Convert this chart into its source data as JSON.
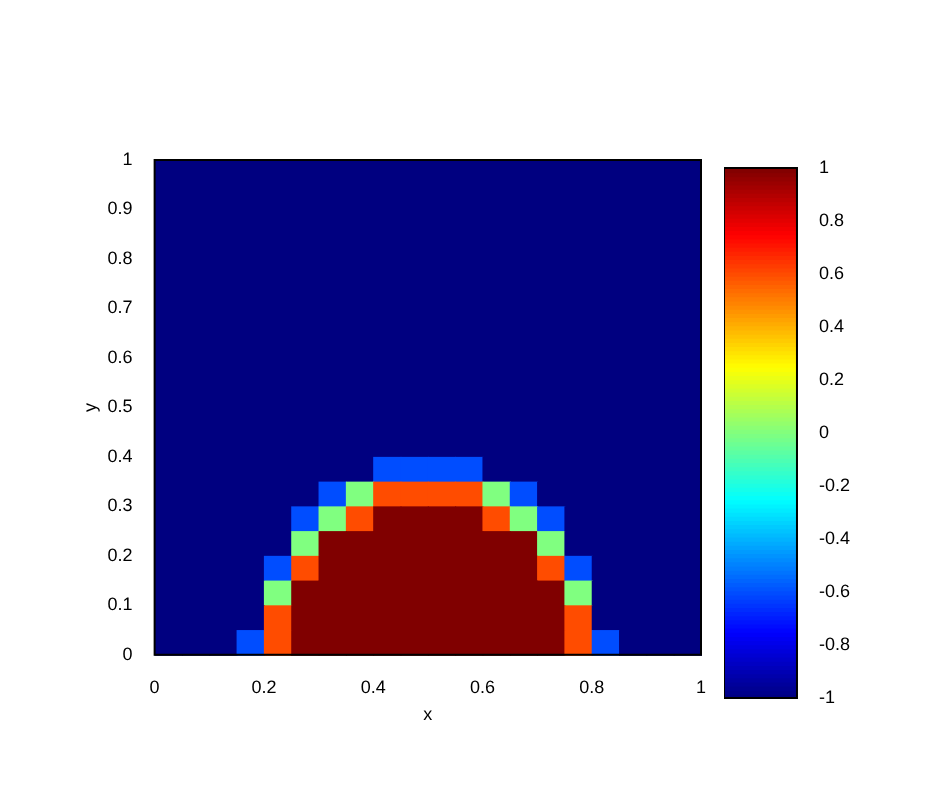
{
  "chart_data": {
    "type": "heatmap",
    "xlabel": "x",
    "ylabel": "y",
    "xlim": [
      0,
      1
    ],
    "ylim": [
      0,
      1
    ],
    "xticks": [
      0,
      0.2,
      0.4,
      0.6,
      0.8,
      1
    ],
    "yticks": [
      0,
      0.1,
      0.2,
      0.3,
      0.4,
      0.5,
      0.6,
      0.7,
      0.8,
      0.9,
      1
    ],
    "clim": [
      -1,
      1
    ],
    "cticks": [
      -1,
      -0.8,
      -0.6,
      -0.4,
      -0.2,
      0,
      0.2,
      0.4,
      0.6,
      0.8,
      1
    ],
    "cells": [
      [
        -1,
        -1,
        -1,
        -1,
        -1,
        -1,
        -1,
        -1,
        -1,
        -1,
        -1,
        -1,
        -1,
        -1,
        -1,
        -1,
        -1,
        -1,
        -1,
        -1
      ],
      [
        -1,
        -1,
        -1,
        -1,
        -1,
        -1,
        -1,
        -1,
        -1,
        -1,
        -1,
        -1,
        -1,
        -1,
        -1,
        -1,
        -1,
        -1,
        -1,
        -1
      ],
      [
        -1,
        -1,
        -1,
        -1,
        -1,
        -1,
        -1,
        -1,
        -1,
        -1,
        -1,
        -1,
        -1,
        -1,
        -1,
        -1,
        -1,
        -1,
        -1,
        -1
      ],
      [
        -1,
        -1,
        -1,
        -1,
        -1,
        -1,
        -1,
        -1,
        -1,
        -1,
        -1,
        -1,
        -1,
        -1,
        -1,
        -1,
        -1,
        -1,
        -1,
        -1
      ],
      [
        -1,
        -1,
        -1,
        -1,
        -1,
        -1,
        -1,
        -1,
        -1,
        -1,
        -1,
        -1,
        -1,
        -1,
        -1,
        -1,
        -1,
        -1,
        -1,
        -1
      ],
      [
        -1,
        -1,
        -1,
        -1,
        -1,
        -1,
        -1,
        -1,
        -1,
        -1,
        -1,
        -1,
        -1,
        -1,
        -1,
        -1,
        -1,
        -1,
        -1,
        -1
      ],
      [
        -1,
        -1,
        -1,
        -1,
        -1,
        -1,
        -1,
        -1,
        -1,
        -1,
        -1,
        -1,
        -1,
        -1,
        -1,
        -1,
        -1,
        -1,
        -1,
        -1
      ],
      [
        -1,
        -1,
        -1,
        -1,
        -1,
        -1,
        -1,
        -1,
        -1,
        -1,
        -1,
        -1,
        -1,
        -1,
        -1,
        -1,
        -1,
        -1,
        -1,
        -1
      ],
      [
        -1,
        -1,
        -1,
        -1,
        -1,
        -1,
        -1,
        -1,
        -1,
        -1,
        -1,
        -1,
        -1,
        -1,
        -1,
        -1,
        -1,
        -1,
        -1,
        -1
      ],
      [
        -1,
        -1,
        -1,
        -1,
        -1,
        -1,
        -1,
        -1,
        -1,
        -1,
        -1,
        -1,
        -1,
        -1,
        -1,
        -1,
        -1,
        -1,
        -1,
        -1
      ],
      [
        -1,
        -1,
        -1,
        -1,
        -1,
        -1,
        -1,
        -1,
        -1,
        -1,
        -1,
        -1,
        -1,
        -1,
        -1,
        -1,
        -1,
        -1,
        -1,
        -1
      ],
      [
        -1,
        -1,
        -1,
        -1,
        -1,
        -1,
        -1,
        -1,
        -1,
        -1,
        -1,
        -1,
        -1,
        -1,
        -1,
        -1,
        -1,
        -1,
        -1,
        -1
      ],
      [
        -1,
        -1,
        -1,
        -1,
        -1,
        -1,
        -1,
        -1,
        -0.6,
        -0.6,
        -0.6,
        -0.6,
        -1,
        -1,
        -1,
        -1,
        -1,
        -1,
        -1,
        -1
      ],
      [
        -1,
        -1,
        -1,
        -1,
        -1,
        -1,
        -0.6,
        0,
        0.6,
        0.6,
        0.6,
        0.6,
        0,
        -0.6,
        -1,
        -1,
        -1,
        -1,
        -1,
        -1
      ],
      [
        -1,
        -1,
        -1,
        -1,
        -1,
        -0.6,
        0,
        0.6,
        1,
        1,
        1,
        1,
        0.6,
        0,
        -0.6,
        -1,
        -1,
        -1,
        -1,
        -1
      ],
      [
        -1,
        -1,
        -1,
        -1,
        -1,
        0,
        1,
        1,
        1,
        1,
        1,
        1,
        1,
        1,
        0,
        -1,
        -1,
        -1,
        -1,
        -1
      ],
      [
        -1,
        -1,
        -1,
        -1,
        -0.6,
        0.6,
        1,
        1,
        1,
        1,
        1,
        1,
        1,
        1,
        0.6,
        -0.6,
        -1,
        -1,
        -1,
        -1
      ],
      [
        -1,
        -1,
        -1,
        -1,
        0,
        1,
        1,
        1,
        1,
        1,
        1,
        1,
        1,
        1,
        1,
        0,
        -1,
        -1,
        -1,
        -1
      ],
      [
        -1,
        -1,
        -1,
        -1,
        0.6,
        1,
        1,
        1,
        1,
        1,
        1,
        1,
        1,
        1,
        1,
        0.6,
        -1,
        -1,
        -1,
        -1
      ],
      [
        -1,
        -1,
        -1,
        -0.6,
        0.6,
        1,
        1,
        1,
        1,
        1,
        1,
        1,
        1,
        1,
        1,
        0.6,
        -0.6,
        -1,
        -1,
        -1
      ]
    ]
  }
}
